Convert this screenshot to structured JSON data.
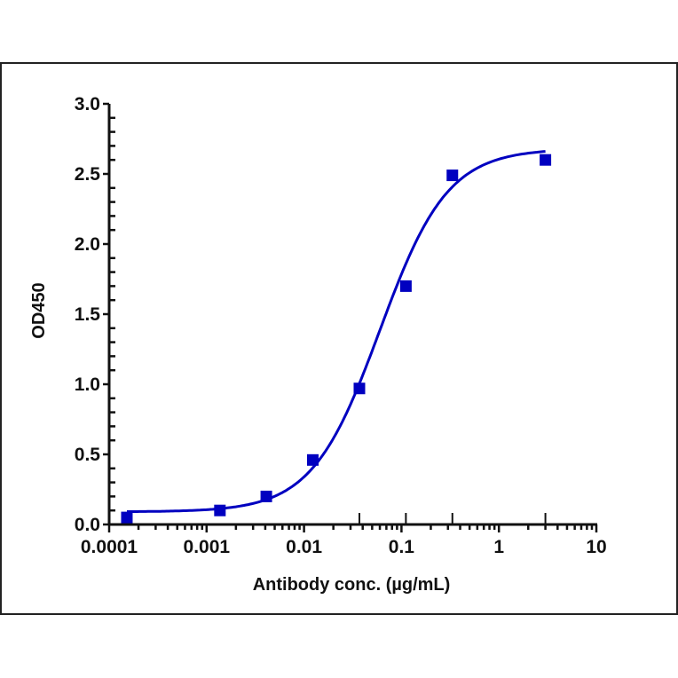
{
  "chart_data": {
    "type": "scatter",
    "title": "",
    "xlabel": "Antibody conc. (µg/mL)",
    "ylabel": "OD450",
    "xscale": "log",
    "xlim": [
      0.0001,
      10
    ],
    "ylim": [
      0,
      3.0
    ],
    "x_ticks": [
      "0.0001",
      "0.001",
      "0.01",
      "0.1",
      "1",
      "10"
    ],
    "y_ticks": [
      "0.0",
      "0.5",
      "1.0",
      "1.5",
      "2.0",
      "2.5",
      "3.0"
    ],
    "grid": false,
    "legend": null,
    "series": [
      {
        "name": "OD450",
        "marker": "square",
        "color": "#0000C0",
        "x": [
          0.000152,
          0.00137,
          0.0041,
          0.0123,
          0.037,
          0.111,
          0.333,
          3.0
        ],
        "y": [
          0.05,
          0.1,
          0.2,
          0.46,
          0.97,
          1.7,
          2.49,
          2.6
        ]
      }
    ],
    "fit": {
      "type": "4PL",
      "color": "#0000C0",
      "bottom": 0.09,
      "top": 2.68,
      "ec50": 0.06,
      "hill": 1.25,
      "x_range": [
        0.000152,
        3.0
      ]
    }
  }
}
